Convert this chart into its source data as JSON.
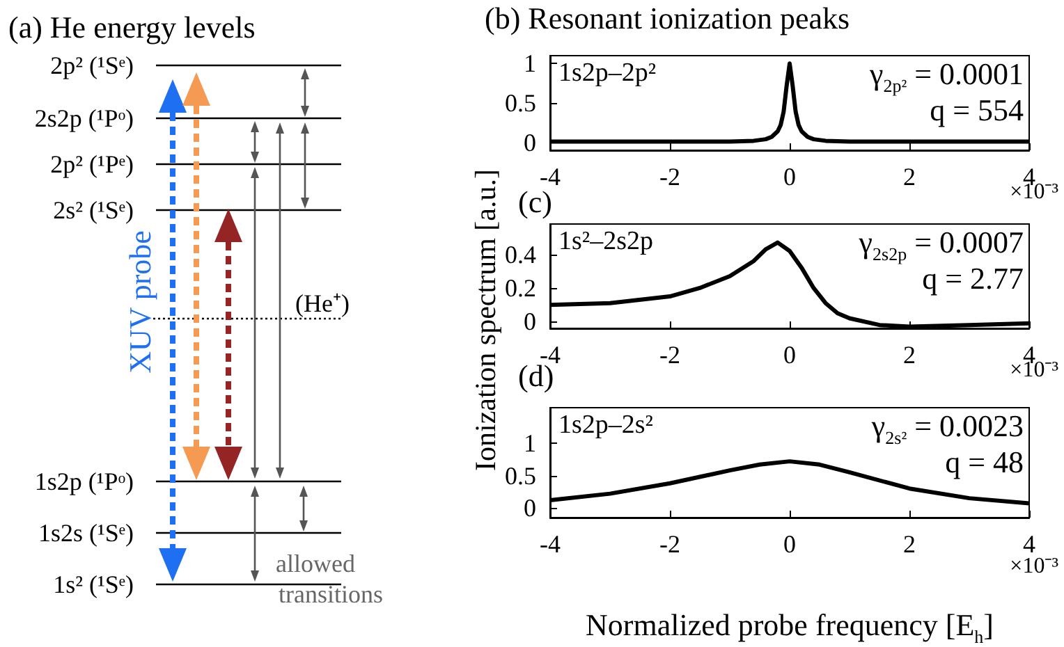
{
  "chart_data": [
    {
      "type": "other",
      "title": "(a) He energy levels",
      "annotations": [
        "2p² (¹Sᵉ)",
        "2s2p (¹Pᵒ)",
        "2p² (¹Pᵉ)",
        "2s² (¹Sᵉ)",
        "1s2p (¹Pᵒ)",
        "1s2s (¹Sᵉ)",
        "1s² (¹Sᵉ)",
        "XUV probe",
        "(He⁺)",
        "allowed transitions"
      ]
    },
    {
      "type": "line",
      "title": "(b) Resonant ionization peaks",
      "x": [
        -4,
        -3,
        -2,
        -1,
        -0.6,
        -0.4,
        -0.3,
        -0.2,
        -0.15,
        -0.1,
        -0.05,
        0,
        0.05,
        0.1,
        0.15,
        0.2,
        0.3,
        0.4,
        0.6,
        1,
        2,
        3,
        4
      ],
      "series": [
        {
          "color": "#000000",
          "values": [
            0.01,
            0.01,
            0.01,
            0.01,
            0.02,
            0.04,
            0.07,
            0.14,
            0.22,
            0.39,
            0.72,
            1,
            0.72,
            0.39,
            0.22,
            0.14,
            0.07,
            0.04,
            0.02,
            0.01,
            0.01,
            0.01,
            0.01
          ]
        }
      ],
      "xlim": [
        -4,
        4
      ],
      "xticks": [
        -4,
        -2,
        0,
        2,
        4
      ],
      "ylim": [
        -0.1,
        1.1
      ],
      "yticks": [
        0,
        0.5,
        1
      ],
      "grid": false,
      "annotations": [
        "1s2p–2p²",
        "γ$_{2p²}$ = 0.0001",
        "q = 554",
        "×10⁻³"
      ]
    },
    {
      "type": "line",
      "title": "(c)",
      "ylabel": "Ionization spectrum [a.u.]",
      "x": [
        -4,
        -3,
        -2,
        -1.5,
        -1,
        -0.6,
        -0.4,
        -0.2,
        0,
        0.2,
        0.4,
        0.6,
        0.8,
        1,
        1.5,
        2,
        3,
        4
      ],
      "series": [
        {
          "color": "#000000",
          "values": [
            0.1,
            0.11,
            0.15,
            0.2,
            0.27,
            0.36,
            0.43,
            0.47,
            0.42,
            0.32,
            0.2,
            0.11,
            0.05,
            0.02,
            -0.02,
            -0.03,
            -0.02,
            -0.01
          ]
        }
      ],
      "xlim": [
        -4,
        4
      ],
      "xticks": [
        -4,
        -2,
        0,
        2,
        4
      ],
      "ylim": [
        -0.04,
        0.58
      ],
      "yticks": [
        0,
        0.2,
        0.4
      ],
      "grid": false,
      "annotations": [
        "1s²–2s2p",
        "γ$_{2s2p}$ = 0.0007",
        "q = 2.77",
        "×10⁻³"
      ]
    },
    {
      "type": "line",
      "title": "(d)",
      "xlabel": "Normalized probe frequency [E$_{h}$]",
      "x": [
        -4,
        -3,
        -2,
        -1,
        -0.5,
        0,
        0.5,
        1,
        2,
        3,
        4
      ],
      "series": [
        {
          "color": "#000000",
          "values": [
            0.12,
            0.22,
            0.38,
            0.58,
            0.67,
            0.72,
            0.67,
            0.55,
            0.3,
            0.15,
            0.07
          ]
        }
      ],
      "xlim": [
        -4,
        4
      ],
      "xticks": [
        -4,
        -2,
        0,
        2,
        4
      ],
      "ylim": [
        -0.15,
        1.55
      ],
      "yticks": [
        0,
        0.5,
        1
      ],
      "grid": false,
      "annotations": [
        "1s2p–2s²",
        "γ$_{2s²}$ = 0.0023",
        "q = 48",
        "×10⁻³"
      ]
    }
  ]
}
